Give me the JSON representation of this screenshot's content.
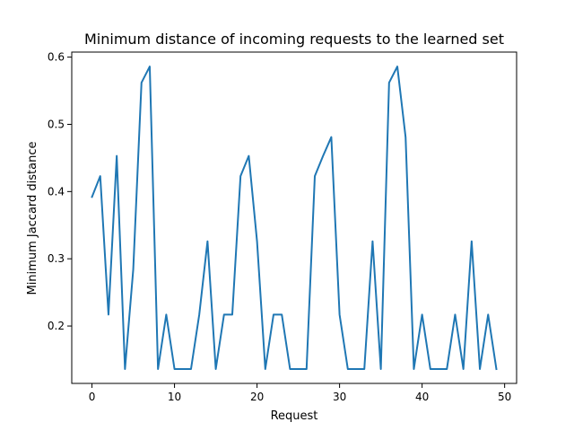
{
  "chart_data": {
    "type": "line",
    "title": "Minimum distance of incoming requests to the learned set",
    "xlabel": "Request",
    "ylabel": "Minimum Jaccard distance",
    "xlim": [
      -2.45,
      51.45
    ],
    "ylim": [
      0.1146,
      0.6075
    ],
    "xticks": [
      0,
      10,
      20,
      30,
      40,
      50
    ],
    "yticks": [
      0.2,
      0.3,
      0.4,
      0.5,
      0.6
    ],
    "xtick_labels": [
      "0",
      "10",
      "20",
      "30",
      "40",
      "50"
    ],
    "ytick_labels": [
      "0.2",
      "0.3",
      "0.4",
      "0.5",
      "0.6"
    ],
    "grid": false,
    "series_color": "#1f77b4",
    "series": [
      {
        "x": [
          0,
          1,
          2,
          3,
          4,
          5,
          6,
          7,
          8,
          9,
          10,
          11,
          12,
          13,
          14,
          15,
          16,
          17,
          18,
          19,
          20,
          21,
          22,
          23,
          24,
          25,
          26,
          27,
          28,
          29,
          30,
          31,
          32,
          33,
          34,
          35,
          36,
          37,
          38,
          39,
          40,
          41,
          42,
          43,
          44,
          45,
          46,
          47,
          48,
          49
        ],
        "values": [
          0.392,
          0.423,
          0.217,
          0.453,
          0.136,
          0.284,
          0.562,
          0.586,
          0.136,
          0.217,
          0.136,
          0.136,
          0.136,
          0.217,
          0.326,
          0.136,
          0.217,
          0.217,
          0.423,
          0.453,
          0.326,
          0.136,
          0.217,
          0.217,
          0.136,
          0.136,
          0.136,
          0.423,
          0.453,
          0.481,
          0.217,
          0.136,
          0.136,
          0.136,
          0.326,
          0.136,
          0.562,
          0.586,
          0.481,
          0.136,
          0.217,
          0.136,
          0.136,
          0.136,
          0.217,
          0.136,
          0.326,
          0.136,
          0.217,
          0.136
        ]
      }
    ]
  }
}
